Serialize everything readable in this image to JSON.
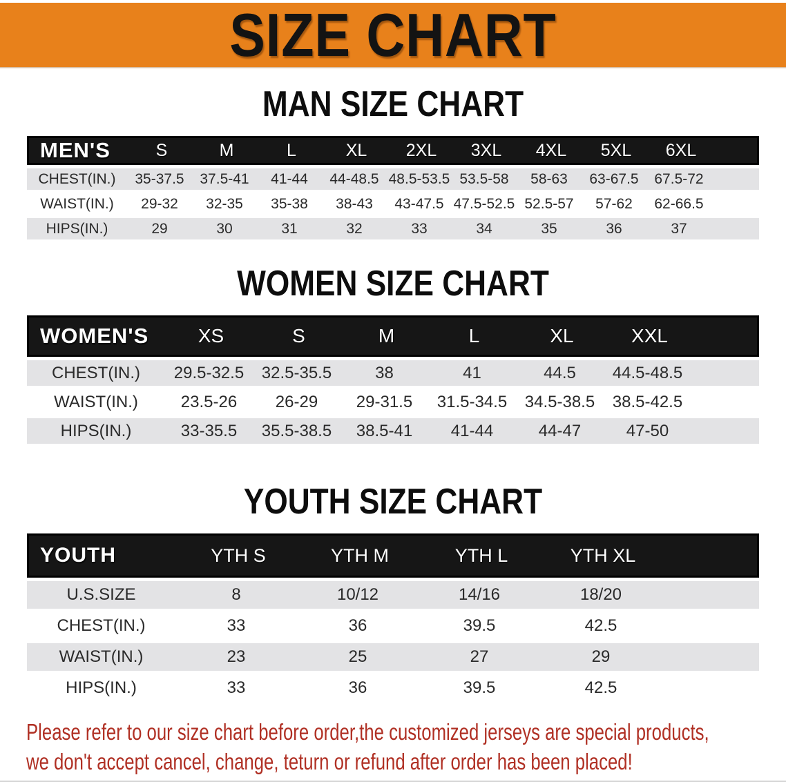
{
  "banner": {
    "title": "SIZE CHART"
  },
  "colors": {
    "banner_bg": "#E8811B",
    "table_header_bg": "#161616",
    "row_alt_bg": "#E3E3E5",
    "notice_text": "#B03024"
  },
  "sections": [
    {
      "heading": "MAN SIZE CHART",
      "table": {
        "corner_label": "MEN'S",
        "columns": [
          "S",
          "M",
          "L",
          "XL",
          "2XL",
          "3XL",
          "4XL",
          "5XL",
          "6XL"
        ],
        "rows": [
          {
            "label": "CHEST(IN.)",
            "values": [
              "35-37.5",
              "37.5-41",
              "41-44",
              "44-48.5",
              "48.5-53.5",
              "53.5-58",
              "58-63",
              "63-67.5",
              "67.5-72"
            ]
          },
          {
            "label": "WAIST(IN.)",
            "values": [
              "29-32",
              "32-35",
              "35-38",
              "38-43",
              "43-47.5",
              "47.5-52.5",
              "52.5-57",
              "57-62",
              "62-66.5"
            ]
          },
          {
            "label": "HIPS(IN.)",
            "values": [
              "29",
              "30",
              "31",
              "32",
              "33",
              "34",
              "35",
              "36",
              "37"
            ]
          }
        ]
      }
    },
    {
      "heading": "WOMEN SIZE CHART",
      "table": {
        "corner_label": "WOMEN'S",
        "columns": [
          "XS",
          "S",
          "M",
          "L",
          "XL",
          "XXL"
        ],
        "rows": [
          {
            "label": "CHEST(IN.)",
            "values": [
              "29.5-32.5",
              "32.5-35.5",
              "38",
              "41",
              "44.5",
              "44.5-48.5"
            ]
          },
          {
            "label": "WAIST(IN.)",
            "values": [
              "23.5-26",
              "26-29",
              "29-31.5",
              "31.5-34.5",
              "34.5-38.5",
              "38.5-42.5"
            ]
          },
          {
            "label": "HIPS(IN.)",
            "values": [
              "33-35.5",
              "35.5-38.5",
              "38.5-41",
              "41-44",
              "44-47",
              "47-50"
            ]
          }
        ]
      }
    },
    {
      "heading": "YOUTH SIZE CHART",
      "table": {
        "corner_label": "YOUTH",
        "columns": [
          "YTH S",
          "YTH M",
          "YTH L",
          "YTH XL"
        ],
        "rows": [
          {
            "label": "U.S.SIZE",
            "values": [
              "8",
              "10/12",
              "14/16",
              "18/20"
            ]
          },
          {
            "label": "CHEST(IN.)",
            "values": [
              "33",
              "36",
              "39.5",
              "42.5"
            ]
          },
          {
            "label": "WAIST(IN.)",
            "values": [
              "23",
              "25",
              "27",
              "29"
            ]
          },
          {
            "label": "HIPS(IN.)",
            "values": [
              "33",
              "36",
              "39.5",
              "42.5"
            ]
          }
        ]
      }
    }
  ],
  "footer": {
    "line1": "Please refer to our size chart before order,the customized jerseys are special products,",
    "line2": "we don't accept cancel, change, teturn or refund after order has been placed!"
  }
}
